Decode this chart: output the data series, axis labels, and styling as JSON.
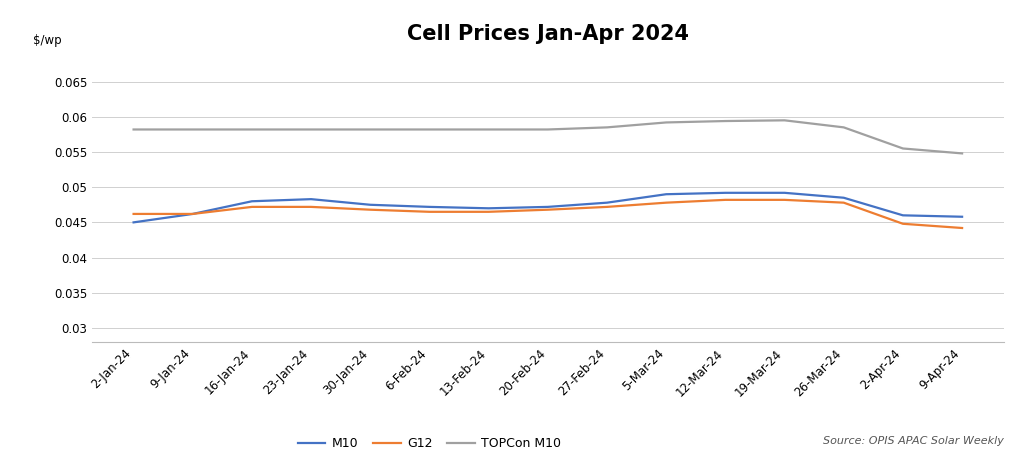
{
  "title": "Cell Prices Jan-Apr 2024",
  "ylabel": "$/wp",
  "source_text": "Source: OPIS APAC Solar Weekly",
  "dates": [
    "2-Jan-24",
    "9-Jan-24",
    "16-Jan-24",
    "23-Jan-24",
    "30-Jan-24",
    "6-Feb-24",
    "13-Feb-24",
    "20-Feb-24",
    "27-Feb-24",
    "5-Mar-24",
    "12-Mar-24",
    "19-Mar-24",
    "26-Mar-24",
    "2-Apr-24",
    "9-Apr-24"
  ],
  "M10": [
    0.045,
    0.0462,
    0.048,
    0.0483,
    0.0475,
    0.0472,
    0.047,
    0.0472,
    0.0478,
    0.049,
    0.0492,
    0.0492,
    0.0485,
    0.046,
    0.0458
  ],
  "G12": [
    0.0462,
    0.0462,
    0.0472,
    0.0472,
    0.0468,
    0.0465,
    0.0465,
    0.0468,
    0.0472,
    0.0478,
    0.0482,
    0.0482,
    0.0478,
    0.0448,
    0.0442
  ],
  "TOPCon_M10": [
    0.0582,
    0.0582,
    0.0582,
    0.0582,
    0.0582,
    0.0582,
    0.0582,
    0.0582,
    0.0585,
    0.0592,
    0.0594,
    0.0595,
    0.0585,
    0.0555,
    0.0548
  ],
  "M10_color": "#4472c4",
  "G12_color": "#ed7d31",
  "TOPCon_color": "#a0a0a0",
  "ylim_min": 0.028,
  "ylim_max": 0.0685,
  "ytick_values": [
    0.03,
    0.035,
    0.04,
    0.045,
    0.05,
    0.055,
    0.06,
    0.065
  ],
  "ytick_labels": [
    "0.03",
    "0.035",
    "0.04",
    "0.045",
    "0.05",
    "0.055",
    "0.06",
    "0.065"
  ],
  "background_color": "#ffffff",
  "grid_color": "#d0d0d0",
  "title_fontsize": 15,
  "axis_fontsize": 8.5,
  "legend_fontsize": 9,
  "source_fontsize": 8,
  "line_width": 1.6
}
